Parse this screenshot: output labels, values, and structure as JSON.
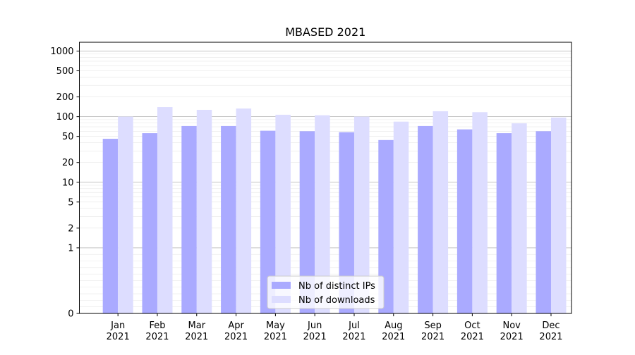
{
  "chart_data": {
    "type": "bar",
    "title": "MBASED 2021",
    "xlabel": "",
    "ylabel": "",
    "y_scale": "symlog",
    "y_ticks": [
      0,
      1,
      2,
      5,
      10,
      20,
      50,
      100,
      200,
      500,
      1000
    ],
    "y_tick_labels": [
      "0",
      "1",
      "2",
      "5",
      "10",
      "20",
      "50",
      "100",
      "200",
      "500",
      "1000"
    ],
    "categories": [
      [
        "Jan",
        "2021"
      ],
      [
        "Feb",
        "2021"
      ],
      [
        "Mar",
        "2021"
      ],
      [
        "Apr",
        "2021"
      ],
      [
        "May",
        "2021"
      ],
      [
        "Jun",
        "2021"
      ],
      [
        "Jul",
        "2021"
      ],
      [
        "Aug",
        "2021"
      ],
      [
        "Sep",
        "2021"
      ],
      [
        "Oct",
        "2021"
      ],
      [
        "Nov",
        "2021"
      ],
      [
        "Dec",
        "2021"
      ]
    ],
    "series": [
      {
        "name": "Nb of distinct IPs",
        "color": "#aaaaff",
        "values": [
          46,
          56,
          72,
          72,
          61,
          60,
          58,
          44,
          72,
          64,
          56,
          60
        ]
      },
      {
        "name": "Nb of downloads",
        "color": "#ddddff",
        "values": [
          100,
          140,
          127,
          133,
          107,
          105,
          100,
          84,
          121,
          117,
          79,
          97
        ]
      }
    ],
    "grid": true,
    "legend_position": "bottom-center"
  }
}
